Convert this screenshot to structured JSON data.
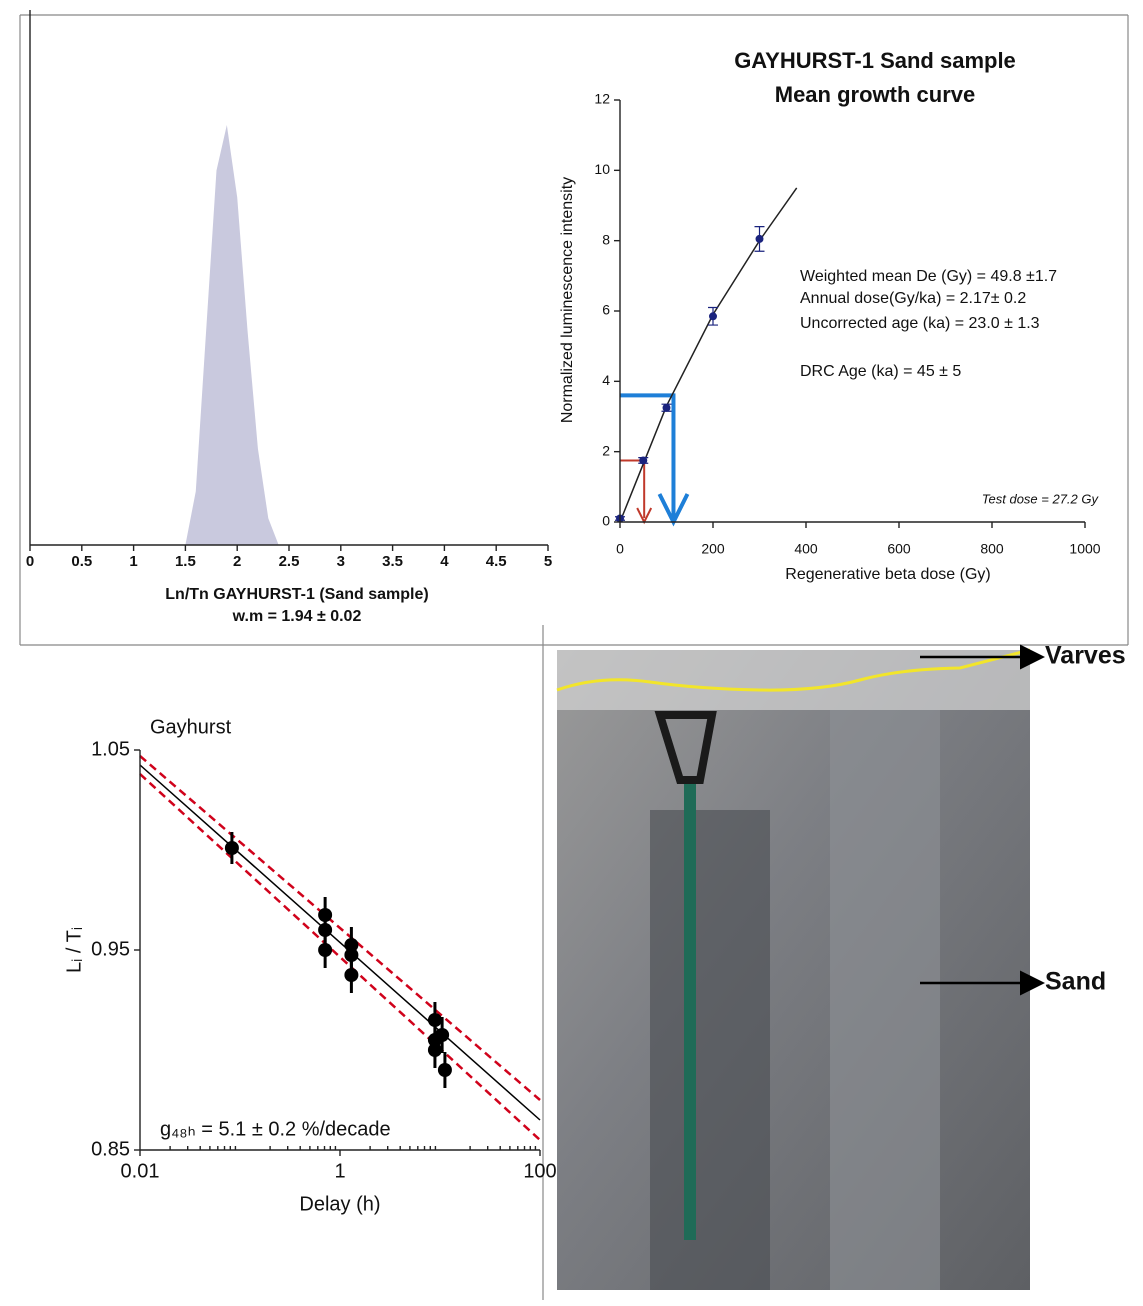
{
  "chart_data": [
    {
      "type": "area",
      "xlabel": "Ln/Tn GAYHURST-1 (Sand sample)",
      "subtitle": "w.m = 1.94 ± 0.02",
      "x": [
        1.5,
        1.6,
        1.7,
        1.8,
        1.9,
        2.0,
        2.1,
        2.2,
        2.3,
        2.4
      ],
      "values": [
        0,
        0.1,
        0.4,
        0.7,
        0.785,
        0.65,
        0.4,
        0.18,
        0.05,
        0
      ],
      "xlim": [
        0,
        5
      ],
      "ylim": [
        0,
        1
      ],
      "xticks": [
        0,
        0.5,
        1,
        1.5,
        2,
        2.5,
        3,
        3.5,
        4,
        4.5,
        5
      ],
      "color": "#c9c9de"
    },
    {
      "type": "scatter",
      "title": "GAYHURST-1 Sand sample",
      "subtitle": "Mean growth curve",
      "xlabel": "Regenerative beta dose (Gy)",
      "ylabel": "Normalized luminescence intensity",
      "xlim": [
        0,
        1000
      ],
      "ylim": [
        0,
        12
      ],
      "xticks": [
        0,
        200,
        400,
        600,
        800,
        1000
      ],
      "yticks": [
        0,
        2,
        4,
        6,
        8,
        10,
        12
      ],
      "points": {
        "x": [
          0,
          50,
          100,
          200,
          300
        ],
        "y": [
          0.1,
          1.75,
          3.25,
          5.85,
          8.05
        ],
        "yerr": [
          0.05,
          0.08,
          0.1,
          0.25,
          0.35
        ],
        "color": "#1a237e"
      },
      "lines": [
        {
          "x": [
            0,
            100,
            200,
            300,
            380
          ],
          "y": [
            0,
            3.3,
            5.9,
            8.0,
            9.5
          ],
          "color": "#222222",
          "dashed": false
        }
      ],
      "guides": [
        {
          "x": 52,
          "y": 1.75,
          "color": "#c0392b"
        },
        {
          "x": 115,
          "y": 3.6,
          "color": "#1e7fd8"
        }
      ],
      "annotations": [
        "Weighted mean De (Gy) = 49.8 ±1.7",
        "Annual dose(Gy/ka) = 2.17± 0.2",
        "Uncorrected age (ka) = 23.0 ± 1.3",
        "DRC Age (ka) = 45 ± 5",
        "Test dose = 27.2 Gy"
      ]
    },
    {
      "type": "scatter",
      "title": "Gayhurst",
      "xlabel": "Delay (h)",
      "ylabel": "Lᵢ / Tᵢ",
      "xscale": "log",
      "xlim": [
        0.01,
        100
      ],
      "ylim": [
        0.85,
        1.05
      ],
      "xticks": [
        0.01,
        1,
        100
      ],
      "yticks": [
        0.85,
        0.95,
        1.05
      ],
      "points": {
        "x": [
          0.083,
          0.71,
          0.71,
          0.71,
          1.3,
          1.3,
          1.3,
          8.9,
          8.9,
          8.9,
          10.5,
          11.2
        ],
        "y": [
          1.001,
          0.9675,
          0.96,
          0.95,
          0.9525,
          0.9475,
          0.9375,
          0.915,
          0.905,
          0.9,
          0.9075,
          0.89
        ],
        "yerr": [
          0.008,
          0.009,
          0.009,
          0.009,
          0.009,
          0.009,
          0.009,
          0.009,
          0.009,
          0.009,
          0.009,
          0.009
        ],
        "color": "#000000"
      },
      "lines": [
        {
          "x": [
            0.01,
            100
          ],
          "y": [
            1.0425,
            0.865
          ],
          "color": "#000000",
          "dashed": false
        },
        {
          "x": [
            0.01,
            100
          ],
          "y": [
            1.047,
            0.875
          ],
          "color": "#d0021b",
          "dashed": true
        },
        {
          "x": [
            0.01,
            100
          ],
          "y": [
            1.038,
            0.855
          ],
          "color": "#d0021b",
          "dashed": true
        }
      ],
      "annotations": [
        "g₄₈ₕ = 5.1 ± 0.2 %/decade"
      ]
    }
  ],
  "photo": {
    "labels": [
      "Varves",
      "Sand"
    ]
  }
}
